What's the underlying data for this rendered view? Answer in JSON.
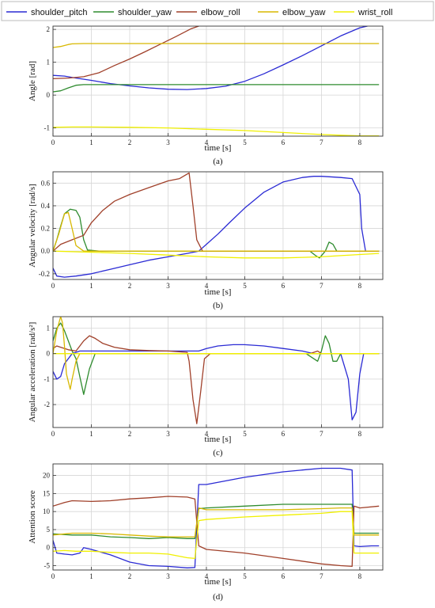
{
  "legend": {
    "entries": [
      {
        "name": "shoulder_pitch",
        "color": "#2a2ad4"
      },
      {
        "name": "shoulder_yaw",
        "color": "#2e8b2e"
      },
      {
        "name": "elbow_roll",
        "color": "#a0402a"
      },
      {
        "name": "elbow_yaw",
        "color": "#d8b800"
      },
      {
        "name": "wrist_roll",
        "color": "#f0f000"
      }
    ]
  },
  "chart_data": [
    {
      "type": "line",
      "panel_label": "(a)",
      "xlabel": "time [s]",
      "ylabel": "Angle [rad]",
      "xlim": [
        0,
        8.6
      ],
      "ylim": [
        -1.25,
        2.1
      ],
      "xticks": [
        0,
        1,
        2,
        3,
        4,
        5,
        6,
        7,
        8
      ],
      "yticks": [
        -1,
        0,
        1,
        2
      ],
      "grid": true,
      "series": [
        {
          "name": "shoulder_pitch",
          "x": [
            0,
            0.3,
            0.6,
            1,
            1.5,
            2,
            2.5,
            3,
            3.5,
            4,
            4.5,
            5,
            5.5,
            6,
            6.5,
            7,
            7.5,
            8,
            8.2
          ],
          "y": [
            0.6,
            0.58,
            0.52,
            0.45,
            0.35,
            0.28,
            0.22,
            0.18,
            0.17,
            0.2,
            0.27,
            0.42,
            0.65,
            0.92,
            1.2,
            1.5,
            1.8,
            2.05,
            2.1
          ]
        },
        {
          "name": "shoulder_yaw",
          "x": [
            0,
            0.2,
            0.4,
            0.6,
            0.8,
            1,
            2,
            3,
            4,
            5,
            6,
            7,
            8,
            8.5
          ],
          "y": [
            0.1,
            0.13,
            0.22,
            0.3,
            0.32,
            0.32,
            0.32,
            0.32,
            0.32,
            0.32,
            0.32,
            0.32,
            0.32,
            0.32
          ]
        },
        {
          "name": "elbow_roll",
          "x": [
            0,
            0.4,
            0.8,
            1.2,
            1.6,
            2,
            2.4,
            2.8,
            3.2,
            3.6,
            3.8
          ],
          "y": [
            0.5,
            0.52,
            0.56,
            0.68,
            0.9,
            1.1,
            1.32,
            1.55,
            1.78,
            2.02,
            2.1
          ]
        },
        {
          "name": "elbow_yaw",
          "x": [
            0,
            0.2,
            0.4,
            0.5,
            0.8,
            1,
            2,
            3,
            4,
            5,
            6,
            7,
            8,
            8.5
          ],
          "y": [
            1.45,
            1.48,
            1.54,
            1.56,
            1.57,
            1.57,
            1.57,
            1.57,
            1.57,
            1.57,
            1.57,
            1.57,
            1.57,
            1.57
          ]
        },
        {
          "name": "wrist_roll",
          "x": [
            0,
            0.5,
            1,
            2,
            3,
            4,
            5,
            6,
            7,
            7.5,
            8,
            8.5
          ],
          "y": [
            -0.98,
            -0.97,
            -0.97,
            -0.98,
            -1.0,
            -1.04,
            -1.08,
            -1.14,
            -1.2,
            -1.22,
            -1.24,
            -1.24
          ]
        }
      ]
    },
    {
      "type": "line",
      "panel_label": "(b)",
      "xlabel": "time [s]",
      "ylabel": "Angular velocity [rad/s]",
      "xlim": [
        0,
        8.6
      ],
      "ylim": [
        -0.25,
        0.7
      ],
      "xticks": [
        0,
        1,
        2,
        3,
        4,
        5,
        6,
        7,
        8
      ],
      "yticks": [
        -0.2,
        0.0,
        0.2,
        0.4,
        0.6
      ],
      "ytick_labels": [
        "-0.2",
        "0.0",
        "0.2",
        "0.4",
        "0.6"
      ],
      "grid": true,
      "series": [
        {
          "name": "shoulder_pitch",
          "x": [
            0,
            0.1,
            0.3,
            0.6,
            1,
            1.5,
            2,
            2.5,
            3,
            3.5,
            3.8,
            4,
            4.3,
            4.6,
            5,
            5.5,
            6,
            6.5,
            6.8,
            7,
            7.5,
            7.8,
            8,
            8.05,
            8.15,
            8.5
          ],
          "y": [
            -0.15,
            -0.22,
            -0.23,
            -0.22,
            -0.2,
            -0.16,
            -0.12,
            -0.08,
            -0.05,
            -0.02,
            0.0,
            0.06,
            0.15,
            0.25,
            0.38,
            0.52,
            0.61,
            0.65,
            0.66,
            0.66,
            0.65,
            0.64,
            0.5,
            0.2,
            0.0,
            0.0
          ]
        },
        {
          "name": "shoulder_yaw",
          "x": [
            0,
            0.1,
            0.2,
            0.3,
            0.45,
            0.6,
            0.7,
            0.8,
            0.9,
            1.2,
            2,
            3,
            4,
            5,
            6,
            6.7,
            6.85,
            6.95,
            7.1,
            7.2,
            7.3,
            7.4,
            8.5
          ],
          "y": [
            0.0,
            0.1,
            0.22,
            0.33,
            0.37,
            0.36,
            0.3,
            0.1,
            0.01,
            0.0,
            0.0,
            0.0,
            0.0,
            0.0,
            0.0,
            0.0,
            -0.04,
            -0.06,
            0.0,
            0.08,
            0.06,
            0.0,
            0.0
          ]
        },
        {
          "name": "elbow_roll",
          "x": [
            0,
            0.2,
            0.5,
            0.8,
            1,
            1.3,
            1.6,
            2,
            2.5,
            3,
            3.3,
            3.55,
            3.65,
            3.75,
            3.9,
            4.2,
            5,
            6,
            7,
            8,
            8.5
          ],
          "y": [
            0.0,
            0.06,
            0.1,
            0.14,
            0.25,
            0.36,
            0.44,
            0.5,
            0.56,
            0.62,
            0.64,
            0.69,
            0.4,
            0.1,
            0.0,
            0.0,
            0.0,
            0.0,
            0.0,
            0.0,
            0.0
          ]
        },
        {
          "name": "elbow_yaw",
          "x": [
            0,
            0.15,
            0.3,
            0.4,
            0.5,
            0.6,
            0.8,
            1,
            2,
            3,
            4,
            5,
            6,
            7,
            8,
            8.5
          ],
          "y": [
            0.0,
            0.15,
            0.33,
            0.34,
            0.2,
            0.05,
            0.0,
            0.0,
            0.0,
            0.0,
            0.0,
            0.0,
            0.0,
            0.0,
            0.0,
            0.0
          ]
        },
        {
          "name": "wrist_roll",
          "x": [
            0,
            1,
            2,
            3,
            4,
            5,
            6,
            6.5,
            7,
            7.5,
            8,
            8.5
          ],
          "y": [
            0.0,
            -0.01,
            -0.02,
            -0.035,
            -0.05,
            -0.06,
            -0.06,
            -0.055,
            -0.05,
            -0.04,
            -0.03,
            -0.02
          ]
        }
      ]
    },
    {
      "type": "line",
      "panel_label": "(c)",
      "xlabel": "time [s]",
      "ylabel": "Angular acceleration [rad/s²]",
      "xlim": [
        0,
        8.6
      ],
      "ylim": [
        -2.9,
        1.45
      ],
      "xticks": [
        0,
        1,
        2,
        3,
        4,
        5,
        6,
        7,
        8
      ],
      "yticks": [
        -2,
        -1,
        0,
        1
      ],
      "grid": true,
      "series": [
        {
          "name": "shoulder_pitch",
          "x": [
            0,
            0.1,
            0.2,
            0.3,
            0.5,
            0.7,
            1,
            1.5,
            2,
            3,
            3.8,
            4,
            4.3,
            4.7,
            5,
            5.5,
            6,
            6.5,
            6.8,
            7,
            7.5,
            7.7,
            7.8,
            7.9,
            8,
            8.1,
            8.3,
            8.5
          ],
          "y": [
            -0.7,
            -1.0,
            -0.9,
            -0.4,
            0.0,
            0.1,
            0.1,
            0.1,
            0.1,
            0.1,
            0.1,
            0.2,
            0.3,
            0.35,
            0.35,
            0.3,
            0.2,
            0.1,
            0.0,
            0.0,
            0.0,
            -1.0,
            -2.6,
            -2.3,
            -0.8,
            0.0,
            0.0,
            0.0
          ]
        },
        {
          "name": "shoulder_yaw",
          "x": [
            0,
            0.1,
            0.2,
            0.3,
            0.5,
            0.6,
            0.7,
            0.8,
            0.95,
            1.1,
            1.3,
            2,
            3,
            4,
            5,
            6,
            6.6,
            6.8,
            6.9,
            7.0,
            7.1,
            7.2,
            7.3,
            7.4,
            7.5,
            7.6,
            8,
            8.5
          ],
          "y": [
            0.5,
            1.0,
            1.2,
            0.9,
            0.1,
            -0.2,
            -0.9,
            -1.6,
            -0.6,
            0.0,
            0.0,
            0.0,
            0.0,
            0.0,
            0.0,
            0.0,
            0.0,
            -0.2,
            -0.3,
            0.1,
            0.7,
            0.4,
            -0.3,
            -0.3,
            0.0,
            0.0,
            0.0,
            0.0
          ]
        },
        {
          "name": "elbow_roll",
          "x": [
            0,
            0.1,
            0.2,
            0.4,
            0.6,
            0.8,
            0.95,
            1.1,
            1.3,
            1.6,
            2,
            2.5,
            3,
            3.5,
            3.55,
            3.65,
            3.75,
            3.85,
            3.95,
            4.1,
            5,
            6,
            6.7,
            6.9,
            7.0,
            8,
            8.5
          ],
          "y": [
            0.2,
            0.3,
            0.25,
            0.15,
            0.1,
            0.5,
            0.7,
            0.6,
            0.4,
            0.25,
            0.15,
            0.12,
            0.1,
            0.05,
            -0.3,
            -1.8,
            -2.75,
            -1.5,
            -0.2,
            0.0,
            0.0,
            0.0,
            0.0,
            0.1,
            0.0,
            0.0,
            0.0
          ]
        },
        {
          "name": "elbow_yaw",
          "x": [
            0,
            0.1,
            0.2,
            0.25,
            0.3,
            0.35,
            0.45,
            0.5,
            0.6,
            0.7,
            0.8,
            1,
            2,
            3,
            4,
            5,
            6,
            7,
            8,
            8.5
          ],
          "y": [
            0.0,
            0.9,
            1.45,
            1.2,
            0.3,
            -0.8,
            -1.4,
            -1.0,
            -0.3,
            0.0,
            0.0,
            0.0,
            0.0,
            0.0,
            0.0,
            0.0,
            0.0,
            0.0,
            0.0,
            0.0
          ]
        },
        {
          "name": "wrist_roll",
          "x": [
            0,
            1,
            2,
            3,
            4,
            5,
            6,
            7,
            8,
            8.5
          ],
          "y": [
            0.0,
            0.0,
            0.0,
            0.0,
            0.0,
            0.0,
            0.0,
            0.0,
            0.0,
            0.0
          ]
        }
      ]
    },
    {
      "type": "line",
      "panel_label": "(d)",
      "xlabel": "time [s]",
      "ylabel": "Attention score",
      "xlim": [
        0,
        8.6
      ],
      "ylim": [
        -6.2,
        23.2
      ],
      "xticks": [
        0,
        1,
        2,
        3,
        4,
        5,
        6,
        7,
        8
      ],
      "yticks": [
        -5,
        0,
        5,
        10,
        15,
        20
      ],
      "grid": true,
      "series": [
        {
          "name": "shoulder_pitch",
          "x": [
            0,
            0.1,
            0.3,
            0.5,
            0.7,
            0.8,
            1,
            1.5,
            2,
            2.5,
            3,
            3.5,
            3.7,
            3.8,
            4,
            5,
            6,
            6.5,
            7,
            7.5,
            7.8,
            7.85,
            8,
            8.3,
            8.5
          ],
          "y": [
            2,
            -1.5,
            -1.8,
            -2,
            -1.5,
            0,
            -0.5,
            -2,
            -4,
            -5,
            -5.2,
            -5.6,
            -5.5,
            17.5,
            17.5,
            19.5,
            21,
            21.5,
            22,
            22,
            21.5,
            0.5,
            0.3,
            0.5,
            0.5
          ]
        },
        {
          "name": "shoulder_yaw",
          "x": [
            0,
            0.5,
            1,
            1.5,
            2,
            2.5,
            3,
            3.5,
            3.7,
            3.8,
            4,
            5,
            6,
            6.5,
            7,
            7.5,
            7.8,
            7.85,
            8,
            8.3,
            8.5
          ],
          "y": [
            3.8,
            3.5,
            3.5,
            3.0,
            2.8,
            2.5,
            2.8,
            2.5,
            2.5,
            10.8,
            11,
            11.5,
            12,
            12,
            12,
            12,
            12,
            4,
            4,
            4,
            4
          ]
        },
        {
          "name": "elbow_roll",
          "x": [
            0,
            0.3,
            0.5,
            1,
            1.5,
            2,
            2.5,
            3,
            3.5,
            3.7,
            3.8,
            4,
            5,
            6,
            7,
            7.5,
            7.8,
            7.85,
            8,
            8.5
          ],
          "y": [
            11.5,
            12.5,
            13,
            12.8,
            13,
            13.5,
            13.8,
            14.2,
            14,
            13.5,
            0.5,
            -0.5,
            -1.5,
            -3,
            -4.5,
            -5,
            -5.2,
            11.5,
            11,
            11.5
          ]
        },
        {
          "name": "elbow_yaw",
          "x": [
            0,
            0.5,
            1,
            1.5,
            2,
            2.5,
            3,
            3.5,
            3.7,
            3.8,
            4,
            5,
            6,
            7,
            7.5,
            7.8,
            7.85,
            8,
            8.5
          ],
          "y": [
            3.5,
            4,
            4,
            3.8,
            3.5,
            3.2,
            3.0,
            3.0,
            3.0,
            11,
            10.5,
            10.5,
            10.5,
            10.8,
            11,
            11,
            3.5,
            3.5,
            3.5
          ]
        },
        {
          "name": "wrist_roll",
          "x": [
            0,
            0.3,
            0.6,
            1,
            1.5,
            2,
            2.5,
            3,
            3.5,
            3.7,
            3.8,
            4,
            5,
            6,
            7,
            7.5,
            7.8,
            7.85,
            8,
            8.5
          ],
          "y": [
            -1,
            -0.8,
            -1,
            -1,
            -1.3,
            -1.5,
            -1.5,
            -1.8,
            -2.8,
            -3,
            7.5,
            7.8,
            8.5,
            9,
            9.5,
            10,
            10,
            -1.5,
            -1.5,
            -1.5
          ]
        }
      ]
    }
  ]
}
